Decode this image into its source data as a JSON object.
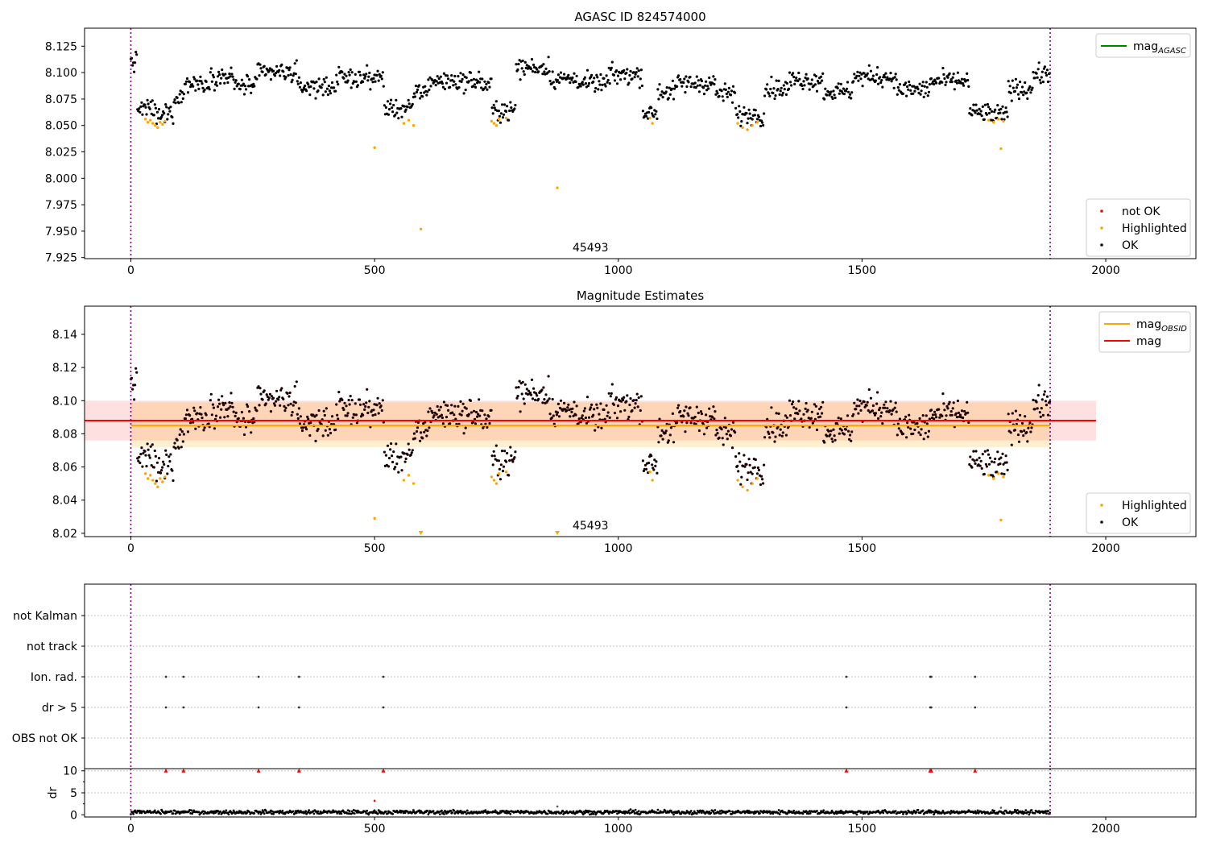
{
  "chart_data": [
    {
      "type": "scatter",
      "title": "AGASC ID 824574000",
      "xlim": [
        -95,
        2185
      ],
      "ylim": [
        7.924,
        8.142
      ],
      "x_ticks": [
        0,
        500,
        1000,
        1500,
        2000
      ],
      "x_tick_labels": [
        "0",
        "500",
        "1000",
        "1500",
        "2000"
      ],
      "y_ticks": [
        7.925,
        7.95,
        7.975,
        8.0,
        8.025,
        8.05,
        8.075,
        8.1,
        8.125
      ],
      "y_tick_labels": [
        "7.925",
        "7.950",
        "7.975",
        "8.000",
        "8.025",
        "8.050",
        "8.075",
        "8.100",
        "8.125"
      ],
      "obsid_boundaries": [
        0,
        1886
      ],
      "obsid_label": "45493",
      "legends": [
        {
          "position": "top-right",
          "entries": [
            {
              "label": "mag",
              "sub": "AGASC",
              "marker": "line",
              "color": "#008000"
            }
          ]
        },
        {
          "position": "bottom-right",
          "entries": [
            {
              "label": "not OK",
              "marker": "dot",
              "color": "#ff0000"
            },
            {
              "label": "Highlighted",
              "marker": "dot",
              "color": "#ffa500"
            },
            {
              "label": "OK",
              "marker": "dot",
              "color": "#000000"
            }
          ]
        }
      ],
      "series": [
        {
          "name": "OK",
          "color": "#000000",
          "segments": [
            [
              0,
              12,
              8.11
            ],
            [
              12,
              50,
              8.066
            ],
            [
              50,
              70,
              8.058
            ],
            [
              70,
              90,
              8.063
            ],
            [
              90,
              110,
              8.078
            ],
            [
              110,
              160,
              8.09
            ],
            [
              160,
              210,
              8.096
            ],
            [
              210,
              260,
              8.088
            ],
            [
              260,
              340,
              8.1
            ],
            [
              340,
              420,
              8.087
            ],
            [
              420,
              520,
              8.095
            ],
            [
              520,
              580,
              8.066
            ],
            [
              580,
              610,
              8.082
            ],
            [
              610,
              720,
              8.092
            ],
            [
              720,
              740,
              8.088
            ],
            [
              740,
              790,
              8.064
            ],
            [
              790,
              860,
              8.105
            ],
            [
              860,
              920,
              8.094
            ],
            [
              920,
              980,
              8.09
            ],
            [
              980,
              1050,
              8.098
            ],
            [
              1050,
              1080,
              8.062
            ],
            [
              1080,
              1120,
              8.082
            ],
            [
              1120,
              1200,
              8.09
            ],
            [
              1200,
              1240,
              8.08
            ],
            [
              1240,
              1300,
              8.06
            ],
            [
              1300,
              1350,
              8.085
            ],
            [
              1350,
              1420,
              8.093
            ],
            [
              1420,
              1480,
              8.082
            ],
            [
              1480,
              1570,
              8.096
            ],
            [
              1570,
              1640,
              8.084
            ],
            [
              1640,
              1720,
              8.092
            ],
            [
              1720,
              1760,
              8.062
            ],
            [
              1760,
              1800,
              8.06
            ],
            [
              1800,
              1850,
              8.085
            ],
            [
              1850,
              1886,
              8.098
            ]
          ]
        },
        {
          "name": "Highlighted",
          "color": "#ffa500",
          "points": [
            [
              30,
              8.056
            ],
            [
              35,
              8.053
            ],
            [
              40,
              8.055
            ],
            [
              45,
              8.052
            ],
            [
              50,
              8.05
            ],
            [
              55,
              8.048
            ],
            [
              60,
              8.053
            ],
            [
              65,
              8.051
            ],
            [
              70,
              8.054
            ],
            [
              500,
              8.029
            ],
            [
              560,
              8.052
            ],
            [
              570,
              8.055
            ],
            [
              580,
              8.05
            ],
            [
              595,
              7.952
            ],
            [
              740,
              8.054
            ],
            [
              745,
              8.052
            ],
            [
              750,
              8.05
            ],
            [
              755,
              8.056
            ],
            [
              770,
              8.057
            ],
            [
              875,
              7.991
            ],
            [
              1065,
              8.057
            ],
            [
              1070,
              8.052
            ],
            [
              1245,
              8.052
            ],
            [
              1255,
              8.048
            ],
            [
              1265,
              8.046
            ],
            [
              1275,
              8.05
            ],
            [
              1285,
              8.053
            ],
            [
              1760,
              8.055
            ],
            [
              1770,
              8.053
            ],
            [
              1780,
              8.056
            ],
            [
              1785,
              8.028
            ],
            [
              1790,
              8.054
            ]
          ]
        }
      ]
    },
    {
      "type": "scatter",
      "title": "Magnitude Estimates",
      "xlim": [
        -95,
        2185
      ],
      "ylim": [
        8.018,
        8.157
      ],
      "x_ticks": [
        0,
        500,
        1000,
        1500,
        2000
      ],
      "x_tick_labels": [
        "0",
        "500",
        "1000",
        "1500",
        "2000"
      ],
      "y_ticks": [
        8.02,
        8.04,
        8.06,
        8.08,
        8.1,
        8.12,
        8.14
      ],
      "y_tick_labels": [
        "8.02",
        "8.04",
        "8.06",
        "8.08",
        "8.10",
        "8.12",
        "8.14"
      ],
      "obsid_boundaries": [
        0,
        1886
      ],
      "obsid_label": "45493",
      "mag": {
        "value": 8.088,
        "band": [
          8.076,
          8.1
        ],
        "x_range": [
          -95,
          1980
        ],
        "color": "#ff0000"
      },
      "mag_obsid": {
        "value": 8.085,
        "band": [
          8.072,
          8.099
        ],
        "x_range": [
          0,
          1886
        ],
        "color": "#ffa500"
      },
      "legends": [
        {
          "position": "top-right",
          "entries": [
            {
              "label": "mag",
              "sub": "OBSID",
              "marker": "line",
              "color": "#ffa500"
            },
            {
              "label": "mag",
              "marker": "line",
              "color": "#ff0000"
            }
          ]
        },
        {
          "position": "bottom-right",
          "entries": [
            {
              "label": "Highlighted",
              "marker": "dot",
              "color": "#ffa500"
            },
            {
              "label": "OK",
              "marker": "dot",
              "color": "#000000"
            }
          ]
        }
      ],
      "series": [
        {
          "name": "OK",
          "color": "#000000"
        },
        {
          "name": "Highlighted",
          "color": "#ffa500",
          "clipped_markers_x": [
            595,
            875
          ]
        }
      ]
    },
    {
      "type": "scatter",
      "xlim": [
        -95,
        2185
      ],
      "categories": [
        "not Kalman",
        "not track",
        "Ion. rad.",
        "dr > 5",
        "OBS not OK"
      ],
      "flag_points": {
        "Ion. rad.": [
          72,
          108,
          262,
          345,
          518,
          1468,
          1640,
          1642,
          1732
        ],
        "dr > 5": [
          72,
          108,
          262,
          345,
          518,
          1468,
          1640,
          1642,
          1732
        ]
      },
      "obsid_boundaries": [
        0,
        1886
      ]
    },
    {
      "type": "scatter",
      "ylabel": "dr",
      "xlim": [
        -95,
        2185
      ],
      "ylim": [
        -0.5,
        10.5
      ],
      "x_ticks": [
        0,
        500,
        1000,
        1500,
        2000
      ],
      "x_tick_labels": [
        "0",
        "500",
        "1000",
        "1500",
        "2000"
      ],
      "y_ticks": [
        0,
        5,
        10
      ],
      "y_tick_labels": [
        "0",
        "5",
        "10"
      ],
      "clipped_markers_x": [
        72,
        108,
        262,
        345,
        518,
        1468,
        1640,
        1642,
        1732
      ],
      "outliers": [
        [
          500,
          3.2
        ],
        [
          875,
          1.9
        ],
        [
          1785,
          1.6
        ]
      ],
      "baseline_dr": 0.6,
      "obsid_boundaries": [
        0,
        1886
      ]
    }
  ]
}
